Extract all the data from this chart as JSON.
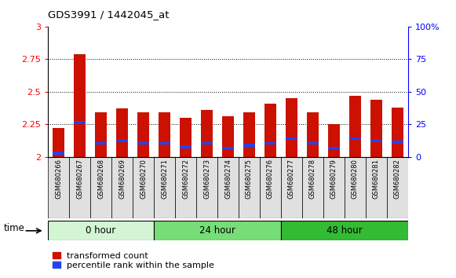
{
  "title": "GDS3991 / 1442045_at",
  "samples": [
    "GSM680266",
    "GSM680267",
    "GSM680268",
    "GSM680269",
    "GSM680270",
    "GSM680271",
    "GSM680272",
    "GSM680273",
    "GSM680274",
    "GSM680275",
    "GSM680276",
    "GSM680277",
    "GSM680278",
    "GSM680279",
    "GSM680280",
    "GSM680281",
    "GSM680282"
  ],
  "red_tops": [
    2.22,
    2.79,
    2.34,
    2.37,
    2.34,
    2.34,
    2.3,
    2.36,
    2.31,
    2.34,
    2.41,
    2.45,
    2.34,
    2.25,
    2.47,
    2.44,
    2.38
  ],
  "blue_bottom": [
    2.02,
    2.255,
    2.095,
    2.115,
    2.095,
    2.095,
    2.068,
    2.095,
    2.058,
    2.078,
    2.095,
    2.13,
    2.095,
    2.058,
    2.13,
    2.115,
    2.105
  ],
  "blue_height": [
    0.022,
    0.022,
    0.022,
    0.022,
    0.022,
    0.022,
    0.022,
    0.022,
    0.022,
    0.022,
    0.022,
    0.022,
    0.022,
    0.022,
    0.022,
    0.022,
    0.022
  ],
  "groups": [
    {
      "label": "0 hour",
      "start": 0,
      "end": 5,
      "color": "#d4f5d4"
    },
    {
      "label": "24 hour",
      "start": 5,
      "end": 11,
      "color": "#77dd77"
    },
    {
      "label": "48 hour",
      "start": 11,
      "end": 17,
      "color": "#33bb33"
    }
  ],
  "ylim_left": [
    2.0,
    3.0
  ],
  "ylim_right": [
    0,
    100
  ],
  "yticks_left": [
    2.0,
    2.25,
    2.5,
    2.75,
    3.0
  ],
  "yticks_right": [
    0,
    25,
    50,
    75,
    100
  ],
  "bar_color": "#cc1100",
  "blue_color": "#2244ee",
  "bar_width": 0.55,
  "legend_red": "transformed count",
  "legend_blue": "percentile rank within the sample",
  "yticklabel_left": [
    "2",
    "2.25",
    "2.5",
    "2.75",
    "3"
  ],
  "yticklabel_right": [
    "0",
    "25",
    "50",
    "75",
    "100%"
  ]
}
